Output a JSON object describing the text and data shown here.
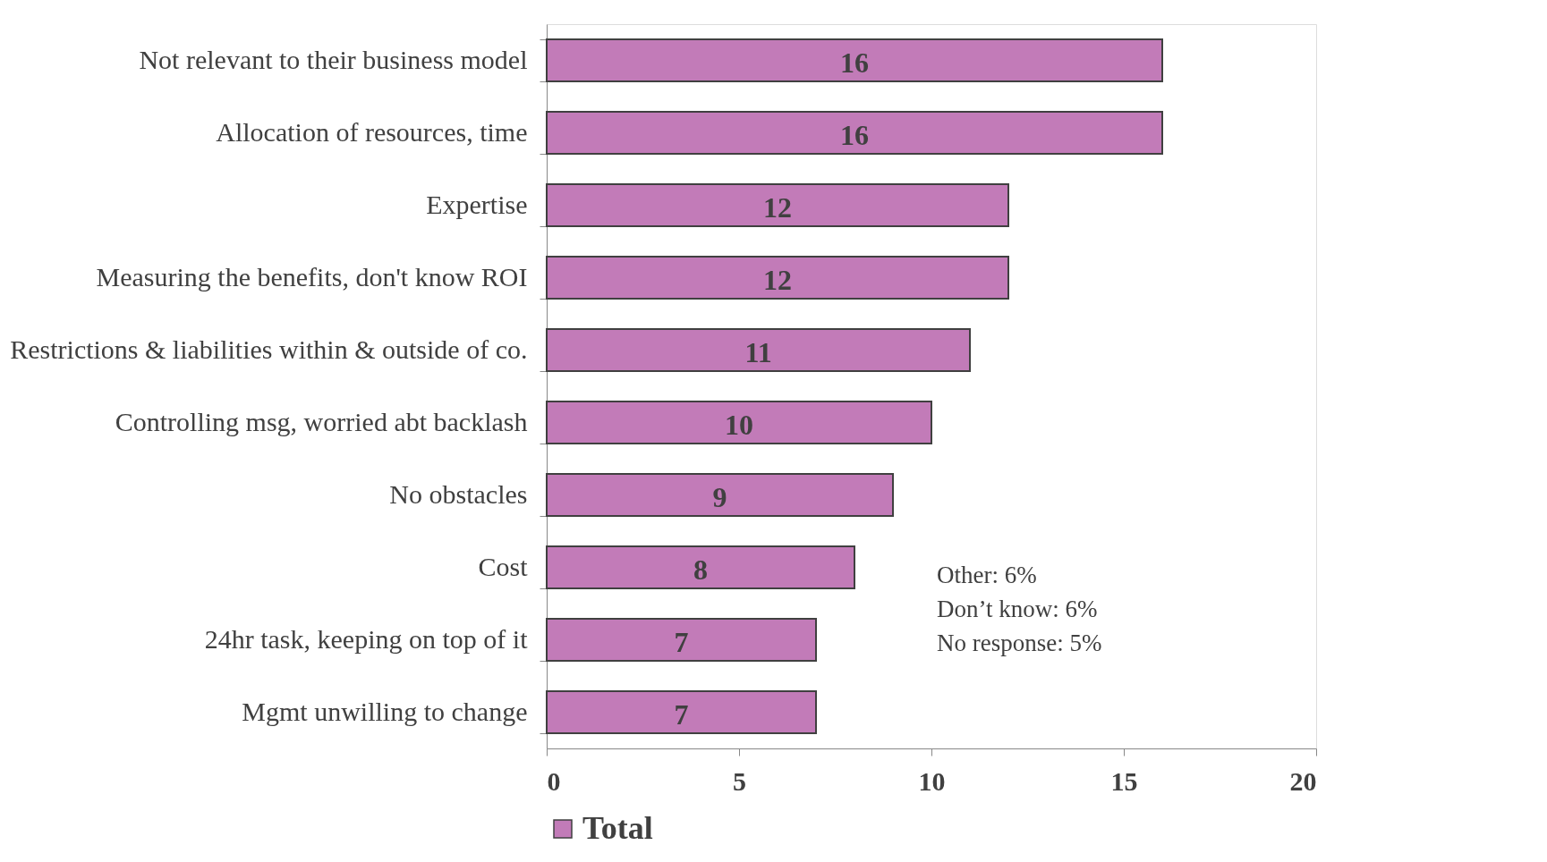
{
  "chart_data": {
    "type": "bar",
    "orientation": "horizontal",
    "categories": [
      "Not relevant to their business model",
      "Allocation of resources, time",
      "Expertise",
      "Measuring the benefits, don't know ROI",
      "Restrictions & liabilities within & outside of co.",
      "Controlling msg, worried abt backlash",
      "No obstacles",
      "Cost",
      "24hr task, keeping on top of it",
      "Mgmt unwilling to change"
    ],
    "series": [
      {
        "name": "Total",
        "color": "#c27bb8",
        "values": [
          16,
          16,
          12,
          12,
          11,
          10,
          9,
          8,
          7,
          7
        ]
      }
    ],
    "xlim": [
      0,
      20
    ],
    "xticks": [
      0,
      5,
      10,
      15,
      20
    ],
    "data_labels": true,
    "grid": false,
    "legend": "bottom",
    "annotations": [
      "Other: 6%",
      "Don’t know: 6%",
      "No response: 5%"
    ]
  }
}
